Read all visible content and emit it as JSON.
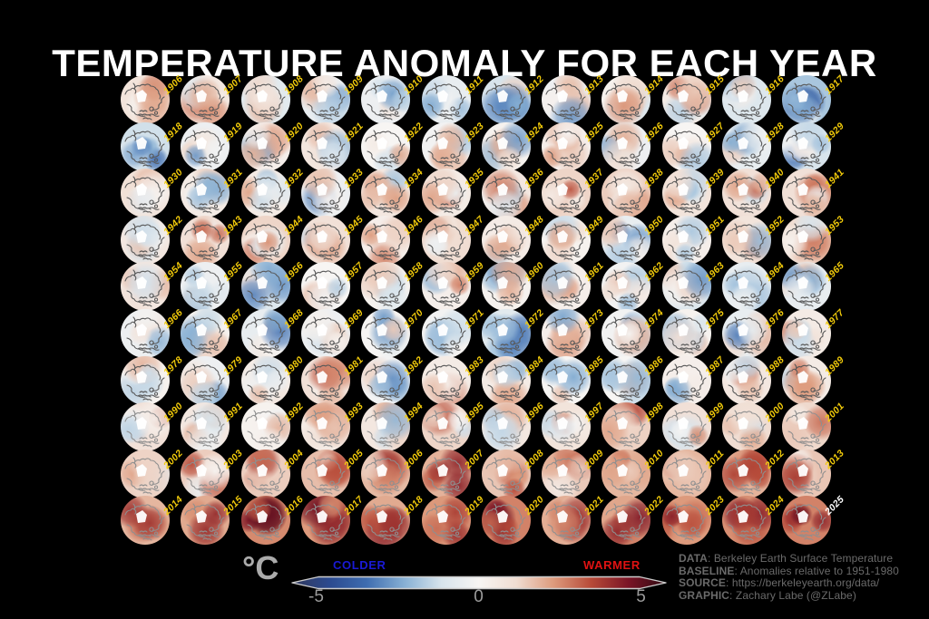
{
  "title": "TEMPERATURE ANOMALY FOR EACH YEAR",
  "colors": {
    "background": "#000000",
    "title": "#ffffff",
    "year_label": "#f2cb0a",
    "final_year_label": "#ffffff",
    "colder_label": "#1a1ad6",
    "warmer_label": "#e01212",
    "tick_label": "#9c9c9c",
    "unit_label": "#ababab",
    "credits": "#6a6a6a",
    "coast_early": "#585858",
    "coast_recent": "#8f8f8f"
  },
  "chart_data": {
    "type": "heatmap",
    "subtype": "small-multiple north polar anomaly maps, one globe per year",
    "grid": {
      "columns": 12,
      "rows": 10
    },
    "years": [
      1906,
      1907,
      1908,
      1909,
      1910,
      1911,
      1912,
      1913,
      1914,
      1915,
      1916,
      1917,
      1918,
      1919,
      1920,
      1921,
      1922,
      1923,
      1924,
      1925,
      1926,
      1927,
      1928,
      1929,
      1930,
      1931,
      1932,
      1933,
      1934,
      1935,
      1936,
      1937,
      1938,
      1939,
      1940,
      1941,
      1942,
      1943,
      1944,
      1945,
      1946,
      1947,
      1948,
      1949,
      1950,
      1951,
      1952,
      1953,
      1954,
      1955,
      1956,
      1957,
      1958,
      1959,
      1960,
      1961,
      1962,
      1963,
      1964,
      1965,
      1966,
      1967,
      1968,
      1969,
      1970,
      1971,
      1972,
      1973,
      1974,
      1975,
      1976,
      1977,
      1978,
      1979,
      1980,
      1981,
      1982,
      1983,
      1984,
      1985,
      1986,
      1987,
      1988,
      1989,
      1990,
      1991,
      1992,
      1993,
      1994,
      1995,
      1996,
      1997,
      1998,
      1999,
      2000,
      2001,
      2002,
      2003,
      2004,
      2005,
      2006,
      2007,
      2008,
      2009,
      2010,
      2011,
      2012,
      2013,
      2014,
      2015,
      2016,
      2017,
      2018,
      2019,
      2020,
      2021,
      2022,
      2023,
      2024,
      2025
    ],
    "approx_mean_anomaly_c": [
      0.5,
      0.4,
      -0.4,
      -0.3,
      -0.2,
      -0.3,
      -0.6,
      -0.2,
      0.1,
      0.3,
      -0.5,
      -1.3,
      -0.7,
      -0.2,
      0.2,
      0.4,
      0.0,
      -0.1,
      0.1,
      0.2,
      -0.2,
      0.0,
      -0.3,
      -0.6,
      0.5,
      0.3,
      0.3,
      -0.2,
      0.4,
      0.3,
      0.4,
      0.9,
      1.1,
      0.5,
      0.6,
      0.6,
      0.4,
      0.6,
      0.9,
      0.6,
      0.2,
      0.7,
      0.3,
      0.1,
      -0.3,
      0.2,
      0.5,
      0.7,
      0.4,
      -0.2,
      -0.5,
      0.0,
      0.1,
      0.2,
      0.1,
      0.2,
      -0.1,
      -0.5,
      -0.3,
      -0.3,
      -0.2,
      0.1,
      -0.3,
      -0.2,
      0.0,
      -0.1,
      -0.4,
      0.2,
      -0.1,
      0.1,
      -0.3,
      0.3,
      0.1,
      -0.2,
      0.3,
      0.6,
      -0.1,
      0.3,
      0.3,
      0.0,
      0.0,
      0.2,
      0.4,
      0.3,
      0.6,
      0.4,
      0.1,
      0.3,
      0.4,
      0.9,
      0.4,
      0.5,
      1.0,
      0.6,
      0.7,
      0.8,
      1.0,
      1.1,
      1.1,
      1.5,
      1.6,
      1.8,
      1.3,
      1.2,
      1.7,
      1.7,
      1.8,
      1.3,
      1.7,
      2.0,
      2.8,
      2.4,
      2.0,
      2.4,
      3.0,
      1.9,
      2.1,
      2.4,
      2.7,
      3.0
    ],
    "colorbar": {
      "unit": "°C",
      "min": -5,
      "max": 5,
      "ticks": [
        -5,
        0,
        5
      ],
      "left_label": "COLDER",
      "right_label": "WARMER",
      "gradient": [
        "#31385c",
        "#2b4a8f",
        "#3f6db0",
        "#87b0d4",
        "#d8e4ec",
        "#f7f5f3",
        "#f0ddd2",
        "#dd9a7c",
        "#b74a38",
        "#7a1426",
        "#2e0a12"
      ]
    }
  },
  "credits": [
    {
      "label": "DATA",
      "text": "Berkeley Earth Surface Temperature"
    },
    {
      "label": "BASELINE",
      "text": "Anomalies relative to 1951-1980"
    },
    {
      "label": "SOURCE",
      "text": "https://berkeleyearth.org/data/"
    },
    {
      "label": "GRAPHIC",
      "text": "Zachary Labe (@ZLabe)"
    }
  ]
}
